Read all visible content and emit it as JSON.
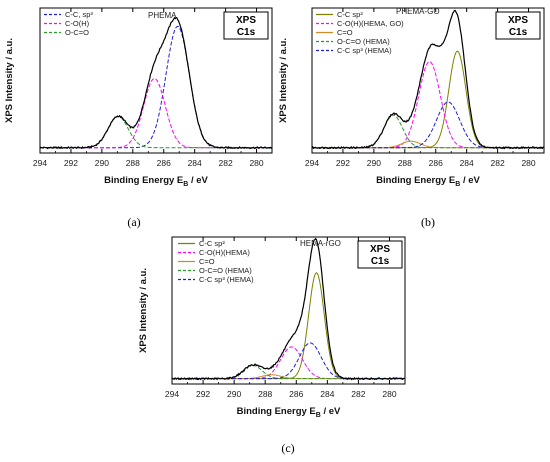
{
  "colors": {
    "total": "#000000",
    "c_c_sp2": "#7f7f00",
    "c_o": "#ff00ff",
    "c_eq_o": "#d08a2a",
    "o_c_eq_o": "#2a9a2a",
    "c_c_sp3": "#1f1fd0"
  },
  "chart_data": [
    {
      "type": "line",
      "panel_caption": "(a)",
      "sample_label": "PHEMA",
      "badge": [
        "XPS",
        "C1s"
      ],
      "xlabel": "Binding Energy",
      "xlabel_sub": "E",
      "xlabel_subscript": "B",
      "xlabel_unit": "/ eV",
      "ylabel": "XPS Intensity / a.u.",
      "x_reversed": true,
      "xlim": [
        294,
        279
      ],
      "ylim": [
        0,
        1.05
      ],
      "xticks": [
        294,
        292,
        290,
        288,
        286,
        284,
        282,
        280
      ],
      "legend": [
        {
          "label": "C-C, sp³",
          "color_key": "c_c_sp3",
          "dash": true
        },
        {
          "label": "C-O(H)",
          "color_key": "c_o",
          "dash": true
        },
        {
          "label": "O-C=O",
          "color_key": "o_c_eq_o",
          "dash": true
        }
      ],
      "series": [
        {
          "name": "C-C, sp³",
          "color_key": "c_c_sp3",
          "dash": true,
          "peak": {
            "center": 285.1,
            "height": 0.93,
            "sigma": 0.75
          }
        },
        {
          "name": "C-O(H)",
          "color_key": "c_o",
          "dash": true,
          "peak": {
            "center": 286.6,
            "height": 0.53,
            "sigma": 0.7
          }
        },
        {
          "name": "O-C=O",
          "color_key": "o_c_eq_o",
          "dash": true,
          "peak": {
            "center": 288.95,
            "height": 0.24,
            "sigma": 0.65
          }
        }
      ],
      "baseline": 0.01
    },
    {
      "type": "line",
      "panel_caption": "(b)",
      "sample_label": "PHEMA-GO",
      "badge": [
        "XPS",
        "C1s"
      ],
      "xlabel": "Binding Energy",
      "xlabel_sub": "E",
      "xlabel_subscript": "B",
      "xlabel_unit": "/ eV",
      "ylabel": "XPS Intensity / a.u.",
      "x_reversed": true,
      "xlim": [
        294,
        279
      ],
      "ylim": [
        0,
        1.05
      ],
      "xticks": [
        294,
        292,
        290,
        288,
        286,
        284,
        282,
        280
      ],
      "legend": [
        {
          "label": "C-C sp²",
          "color_key": "c_c_sp2",
          "dash": false
        },
        {
          "label": "C-O(H)(HEMA, GO)",
          "color_key": "c_o",
          "dash": true
        },
        {
          "label": "C=O",
          "color_key": "c_eq_o",
          "dash": false
        },
        {
          "label": "O-C=O (HEMA)",
          "color_key": "o_c_eq_o",
          "dash": true
        },
        {
          "label": "C-C sp³ (HEMA)",
          "color_key": "c_c_sp3",
          "dash": true
        }
      ],
      "series": [
        {
          "name": "C-C sp²",
          "color_key": "c_c_sp2",
          "dash": false,
          "peak": {
            "center": 284.6,
            "height": 0.74,
            "sigma": 0.55
          }
        },
        {
          "name": "C-O(H)(HEMA, GO)",
          "color_key": "c_o",
          "dash": true,
          "peak": {
            "center": 286.4,
            "height": 0.66,
            "sigma": 0.7
          }
        },
        {
          "name": "C=O",
          "color_key": "c_eq_o",
          "dash": false,
          "peak": {
            "center": 287.6,
            "height": 0.05,
            "sigma": 0.6
          }
        },
        {
          "name": "O-C=O (HEMA)",
          "color_key": "o_c_eq_o",
          "dash": true,
          "peak": {
            "center": 288.75,
            "height": 0.25,
            "sigma": 0.6
          }
        },
        {
          "name": "C-C sp³ (HEMA)",
          "color_key": "c_c_sp3",
          "dash": true,
          "peak": {
            "center": 285.2,
            "height": 0.35,
            "sigma": 0.75
          }
        }
      ],
      "baseline": 0.01
    },
    {
      "type": "line",
      "panel_caption": "(c)",
      "sample_label": "HEMA-rGO",
      "badge": [
        "XPS",
        "C1s"
      ],
      "xlabel": "Binding Energy",
      "xlabel_sub": "E",
      "xlabel_subscript": "B",
      "xlabel_unit": "/ eV",
      "ylabel": "XPS Intensity / a.u.",
      "x_reversed": true,
      "xlim": [
        294,
        279
      ],
      "ylim": [
        0,
        1.05
      ],
      "xticks": [
        294,
        292,
        290,
        288,
        286,
        284,
        282,
        280
      ],
      "legend": [
        {
          "label": "C-C sp²",
          "color_key": "c_c_sp2",
          "dash": false
        },
        {
          "label": "C-O(H)(HEMA)",
          "color_key": "c_o",
          "dash": true
        },
        {
          "label": "C=O",
          "color_key": "c_eq_o",
          "dash": false
        },
        {
          "label": "O-C=O (HEMA)",
          "color_key": "o_c_eq_o",
          "dash": true
        },
        {
          "label": "C-C sp³ (HEMA)",
          "color_key": "c_c_sp3",
          "dash": true
        }
      ],
      "series": [
        {
          "name": "C-C sp²",
          "color_key": "c_c_sp2",
          "dash": false,
          "peak": {
            "center": 284.7,
            "height": 0.8,
            "sigma": 0.5
          }
        },
        {
          "name": "C-O(H)(HEMA)",
          "color_key": "c_o",
          "dash": true,
          "peak": {
            "center": 286.3,
            "height": 0.24,
            "sigma": 0.7
          }
        },
        {
          "name": "C=O",
          "color_key": "c_eq_o",
          "dash": false,
          "peak": {
            "center": 287.6,
            "height": 0.03,
            "sigma": 0.6
          }
        },
        {
          "name": "O-C=O (HEMA)",
          "color_key": "o_c_eq_o",
          "dash": true,
          "peak": {
            "center": 288.8,
            "height": 0.1,
            "sigma": 0.6
          }
        },
        {
          "name": "C-C sp³ (HEMA)",
          "color_key": "c_c_sp3",
          "dash": true,
          "peak": {
            "center": 285.1,
            "height": 0.27,
            "sigma": 0.7
          }
        }
      ],
      "baseline": 0.01
    }
  ]
}
